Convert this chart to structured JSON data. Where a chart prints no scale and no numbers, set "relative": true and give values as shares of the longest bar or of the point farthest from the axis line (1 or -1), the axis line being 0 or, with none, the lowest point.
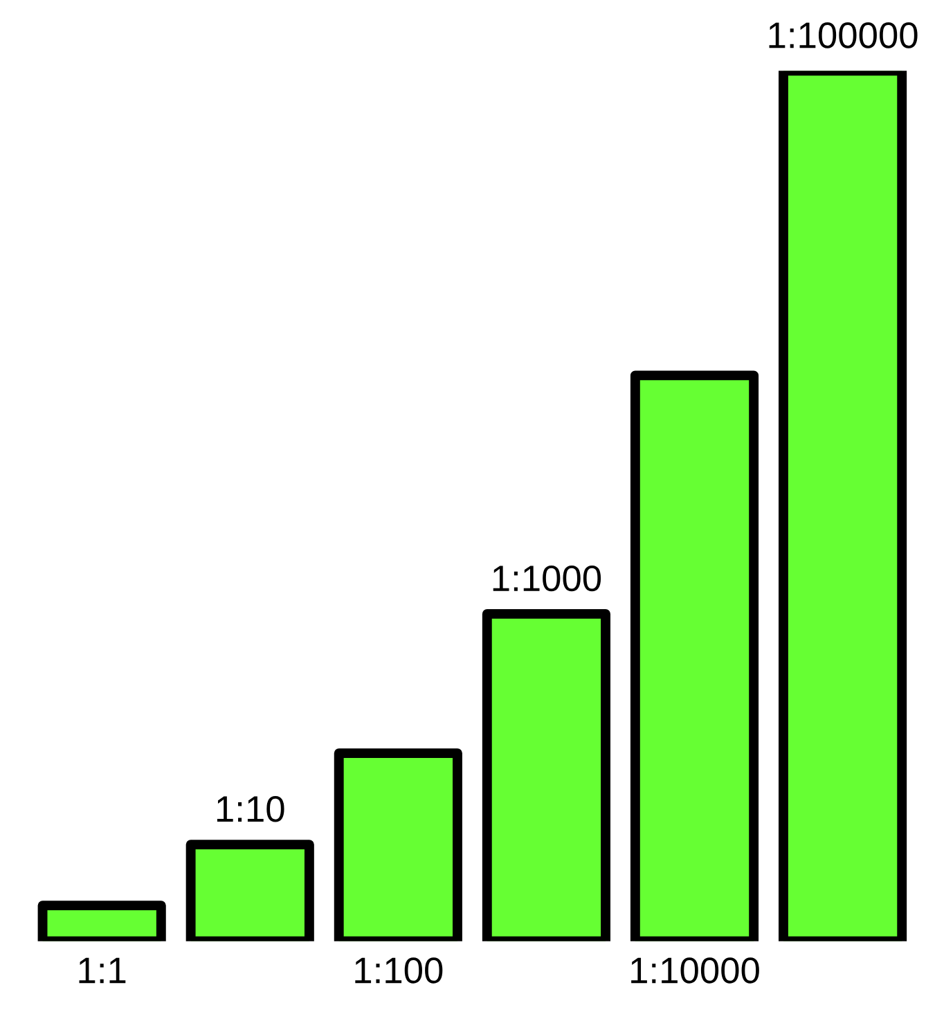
{
  "chart_data": {
    "type": "bar",
    "relative": true,
    "categories": [
      "1:1",
      "1:10",
      "1:100",
      "1:1000",
      "1:10000",
      "1:100000"
    ],
    "values": [
      0.041,
      0.111,
      0.216,
      0.376,
      0.65,
      1
    ],
    "color": "#66ff33"
  }
}
